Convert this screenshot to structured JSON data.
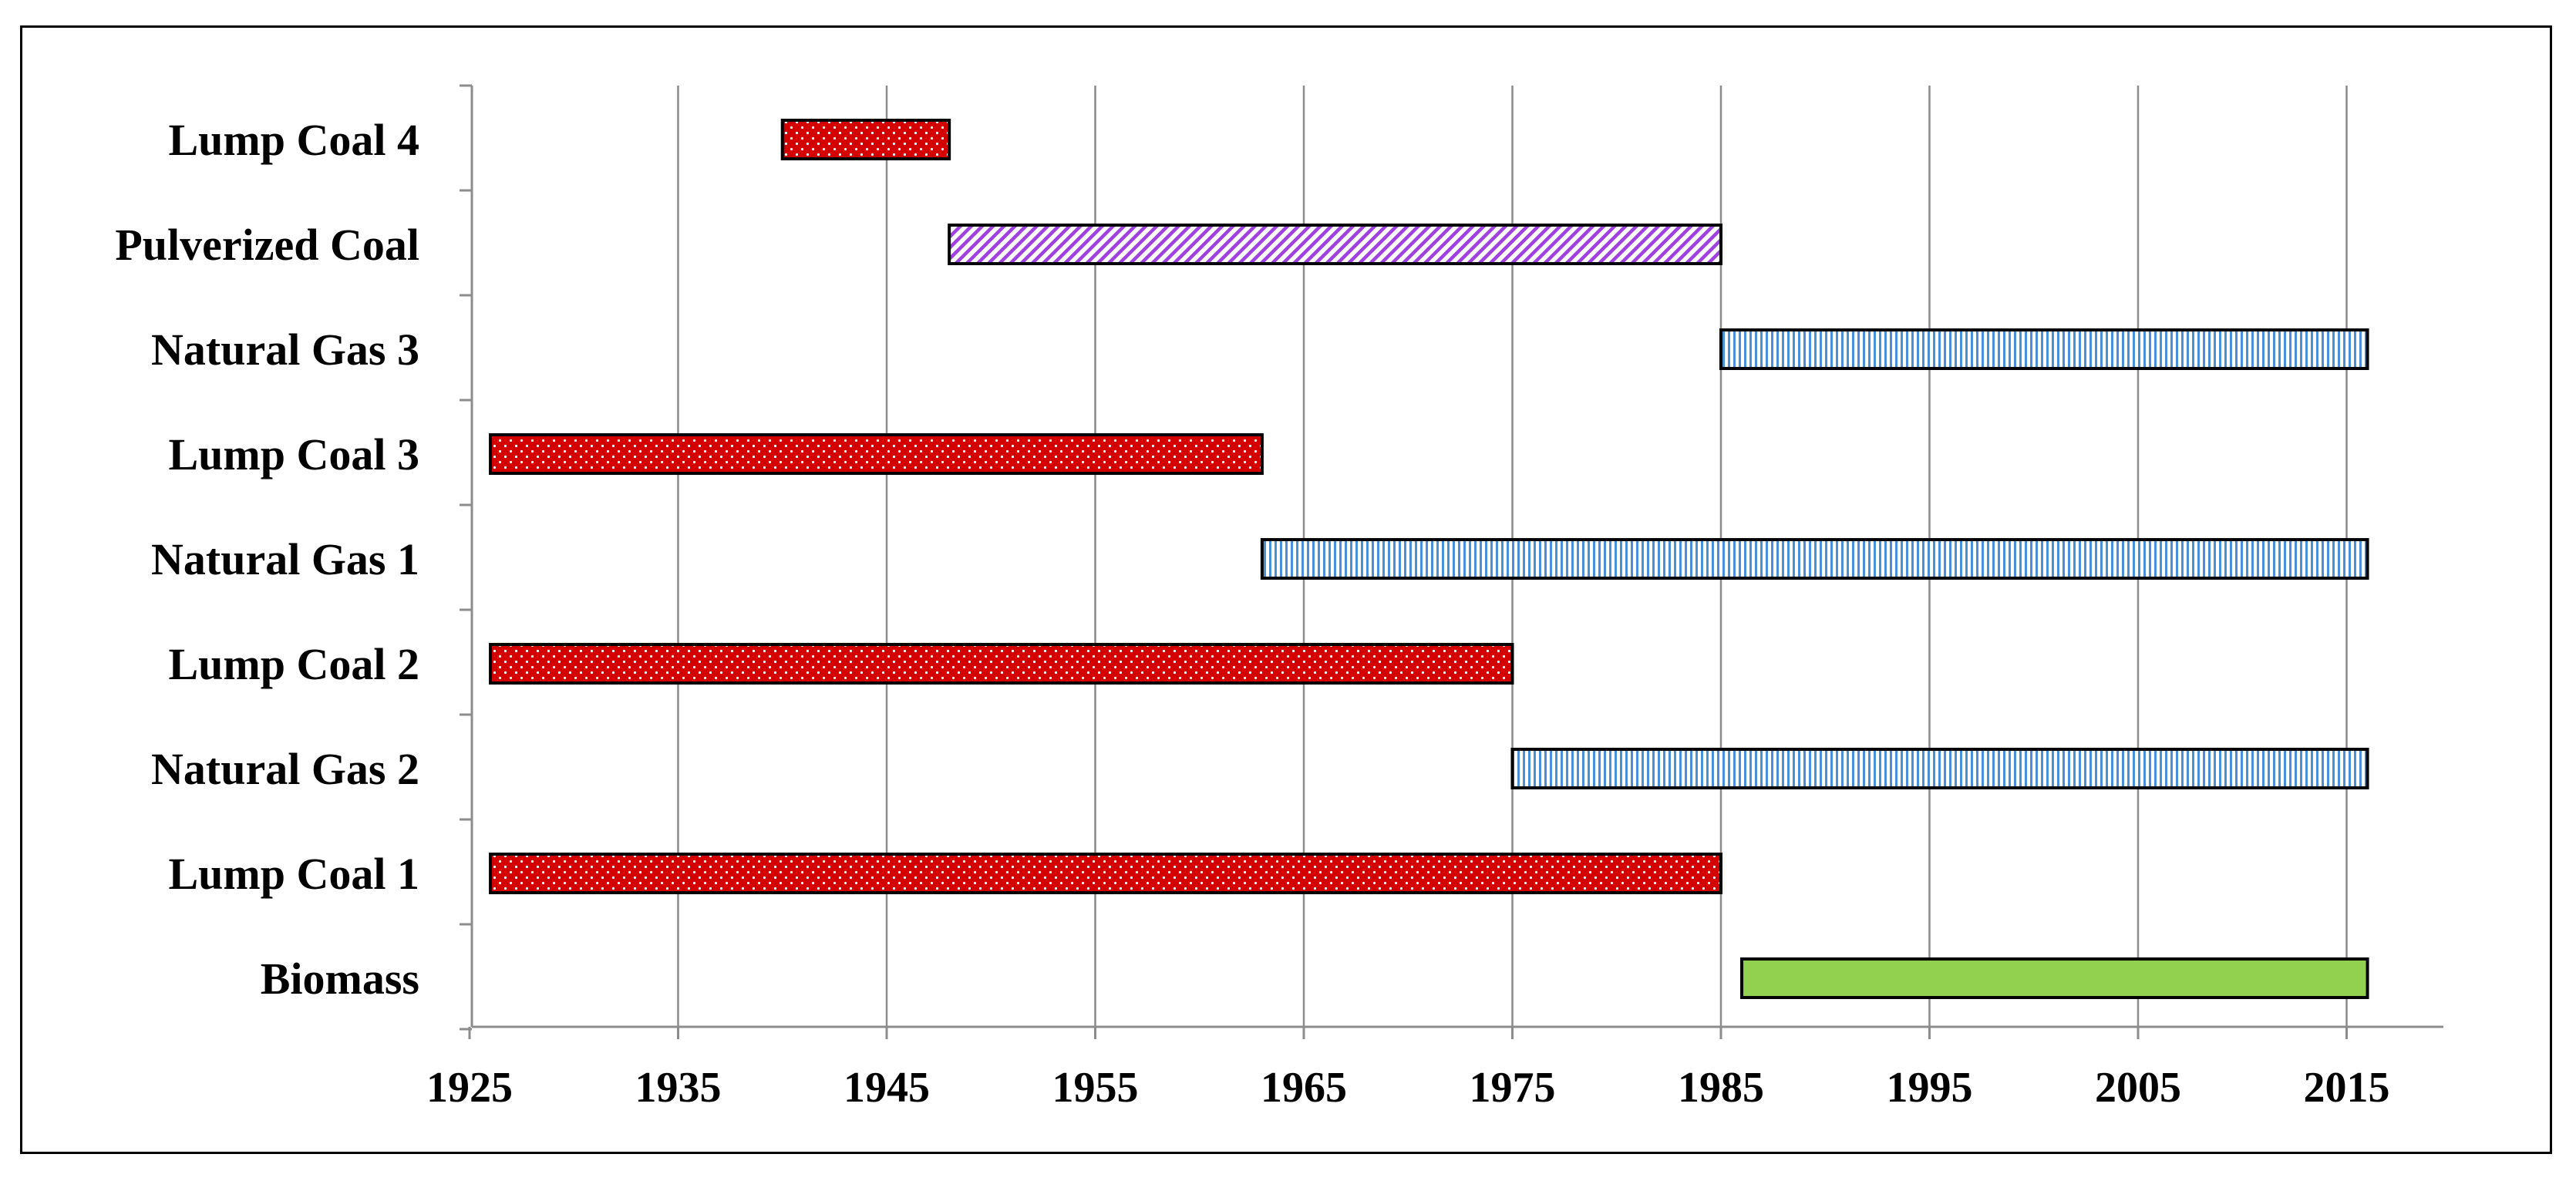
{
  "chart_data": {
    "type": "bar",
    "orientation": "horizontal-range",
    "title": "",
    "xlabel": "",
    "ylabel": "",
    "categories": [
      "Lump Coal 4",
      "Pulverized Coal",
      "Natural Gas 3",
      "Lump Coal 3",
      "Natural Gas 1",
      "Lump Coal 2",
      "Natural Gas 2",
      "Lump Coal 1",
      "Biomass"
    ],
    "ranges": [
      {
        "category": "Lump Coal 4",
        "start": 1940,
        "end": 1948,
        "fuel": "coal"
      },
      {
        "category": "Pulverized Coal",
        "start": 1948,
        "end": 1985,
        "fuel": "pulverized"
      },
      {
        "category": "Natural Gas 3",
        "start": 1985,
        "end": 2016,
        "fuel": "gas"
      },
      {
        "category": "Lump Coal 3",
        "start": 1926,
        "end": 1963,
        "fuel": "coal"
      },
      {
        "category": "Natural Gas 1",
        "start": 1963,
        "end": 2016,
        "fuel": "gas"
      },
      {
        "category": "Lump Coal 2",
        "start": 1926,
        "end": 1975,
        "fuel": "coal"
      },
      {
        "category": "Natural Gas 2",
        "start": 1975,
        "end": 2016,
        "fuel": "gas"
      },
      {
        "category": "Lump Coal 1",
        "start": 1926,
        "end": 1985,
        "fuel": "coal"
      },
      {
        "category": "Biomass",
        "start": 1986,
        "end": 2016,
        "fuel": "biomass"
      }
    ],
    "xlim": [
      1925,
      2020
    ],
    "xticks": [
      1925,
      1935,
      1945,
      1955,
      1965,
      1975,
      1985,
      1995,
      2005,
      2015
    ],
    "grid": "vertical",
    "legend": "none",
    "colors": {
      "coal": "#d40000",
      "pulverized": "#a040e0",
      "gas": "#4a90d8",
      "biomass": "#92d050",
      "outline": "#000000",
      "grid": "#8c8c8c"
    }
  }
}
